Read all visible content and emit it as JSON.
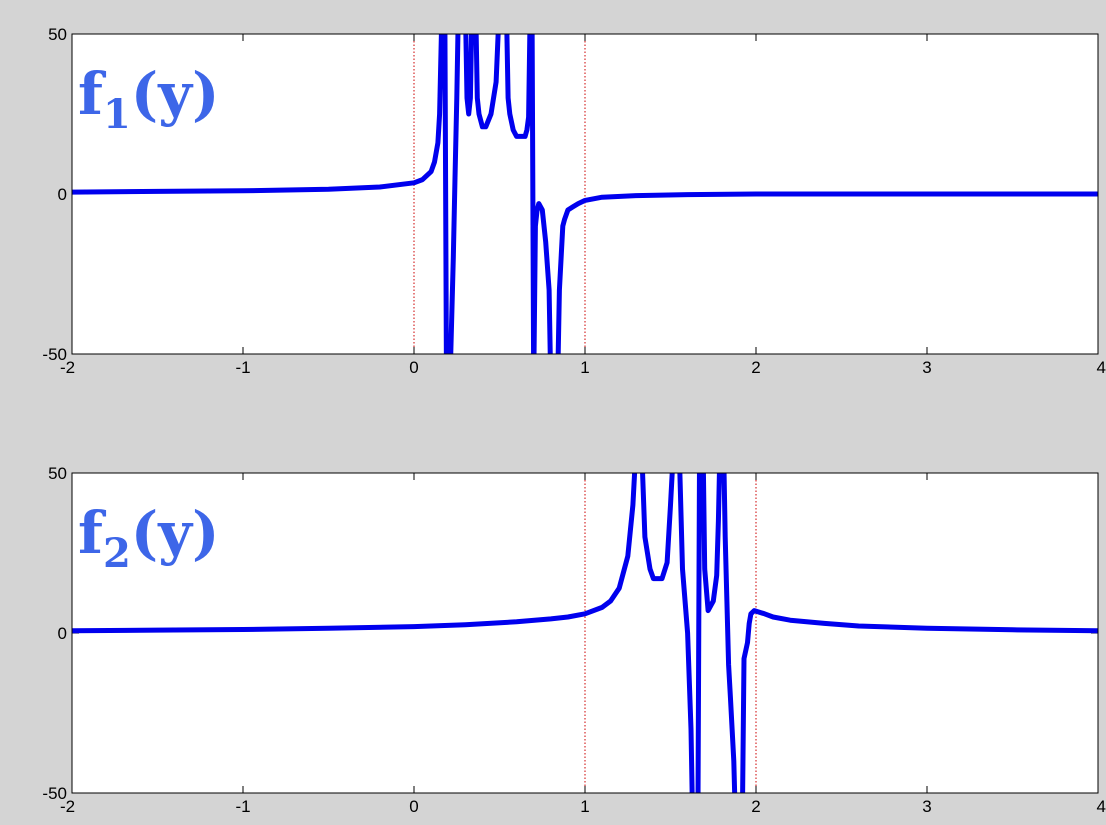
{
  "chart_data": [
    {
      "type": "line",
      "label": {
        "base": "f",
        "subscript": "1",
        "suffix": "(y)"
      },
      "xlim": [
        -2,
        4
      ],
      "ylim": [
        -50,
        50
      ],
      "xticks": [
        -2,
        -1,
        0,
        1,
        2,
        3,
        4
      ],
      "yticks": [
        -50,
        0,
        50
      ],
      "grid": false,
      "line_color": "#0000ee",
      "marker_color": "#cc0000",
      "vertical_markers": [
        0,
        1
      ],
      "series": [
        {
          "x": [
            -2,
            -1.5,
            -1,
            -0.5,
            -0.2,
            0,
            0.05,
            0.1,
            0.12,
            0.14,
            0.15,
            0.16,
            0.17,
            0.175,
            0.18,
            0.19,
            0.2,
            0.21,
            0.22,
            0.23,
            0.24,
            0.25,
            0.26,
            0.28,
            0.3,
            0.31,
            0.32,
            0.33,
            0.34,
            0.35,
            0.36,
            0.37,
            0.38,
            0.4,
            0.42,
            0.45,
            0.48,
            0.5,
            0.52,
            0.54,
            0.55,
            0.56,
            0.58,
            0.6,
            0.62,
            0.64,
            0.65,
            0.66,
            0.67,
            0.68,
            0.69,
            0.7,
            0.71,
            0.72,
            0.73,
            0.75,
            0.77,
            0.79,
            0.8,
            0.82,
            0.84,
            0.85,
            0.86,
            0.87,
            0.88,
            0.9,
            0.93,
            0.96,
            1,
            1.1,
            1.3,
            1.6,
            2,
            3,
            4
          ],
          "y": [
            0.6,
            0.8,
            1.0,
            1.5,
            2.2,
            3.5,
            4.5,
            7,
            10,
            16,
            25,
            50,
            60,
            60,
            60,
            -60,
            -60,
            -60,
            -40,
            -20,
            5,
            30,
            60,
            60,
            60,
            30,
            25,
            30,
            60,
            60,
            60,
            30,
            25,
            21,
            21,
            25,
            35,
            60,
            60,
            60,
            30,
            25,
            20,
            18,
            18,
            18,
            18,
            20,
            24,
            60,
            60,
            -60,
            -10,
            -5,
            -3,
            -5,
            -15,
            -30,
            -60,
            -60,
            -60,
            -30,
            -20,
            -10,
            -8,
            -5,
            -4,
            -3,
            -2,
            -1,
            -0.5,
            -0.2,
            0,
            0,
            0
          ]
        }
      ]
    },
    {
      "type": "line",
      "label": {
        "base": "f",
        "subscript": "2",
        "suffix": "(y)"
      },
      "xlim": [
        -2,
        4
      ],
      "ylim": [
        -50,
        50
      ],
      "xticks": [
        -2,
        -1,
        0,
        1,
        2,
        3,
        4
      ],
      "yticks": [
        -50,
        0,
        50
      ],
      "grid": false,
      "line_color": "#0000ee",
      "marker_color": "#cc0000",
      "vertical_markers": [
        1,
        2
      ],
      "series": [
        {
          "x": [
            -2,
            -1.5,
            -1,
            -0.5,
            0,
            0.3,
            0.6,
            0.8,
            0.9,
            1,
            1.1,
            1.15,
            1.2,
            1.25,
            1.28,
            1.3,
            1.33,
            1.35,
            1.38,
            1.4,
            1.45,
            1.48,
            1.5,
            1.52,
            1.53,
            1.55,
            1.57,
            1.6,
            1.62,
            1.63,
            1.64,
            1.66,
            1.67,
            1.68,
            1.69,
            1.7,
            1.72,
            1.75,
            1.77,
            1.78,
            1.79,
            1.8,
            1.81,
            1.82,
            1.83,
            1.84,
            1.85,
            1.86,
            1.87,
            1.88,
            1.9,
            1.92,
            1.93,
            1.95,
            1.96,
            1.97,
            1.99,
            2.05,
            2.1,
            2.2,
            2.4,
            2.6,
            3,
            3.5,
            4
          ],
          "y": [
            0.7,
            0.9,
            1.1,
            1.5,
            2,
            2.6,
            3.5,
            4.4,
            5,
            6,
            8,
            10,
            14,
            24,
            40,
            60,
            60,
            30,
            20,
            17,
            17,
            22,
            40,
            60,
            60,
            60,
            20,
            0,
            -30,
            -60,
            -60,
            -60,
            60,
            60,
            60,
            20,
            7,
            10,
            18,
            35,
            60,
            60,
            60,
            30,
            10,
            -10,
            -20,
            -30,
            -40,
            -60,
            -60,
            -60,
            -8,
            -3,
            3,
            6,
            7,
            6,
            5,
            4,
            3,
            2.2,
            1.5,
            1,
            0.7
          ]
        }
      ]
    }
  ]
}
